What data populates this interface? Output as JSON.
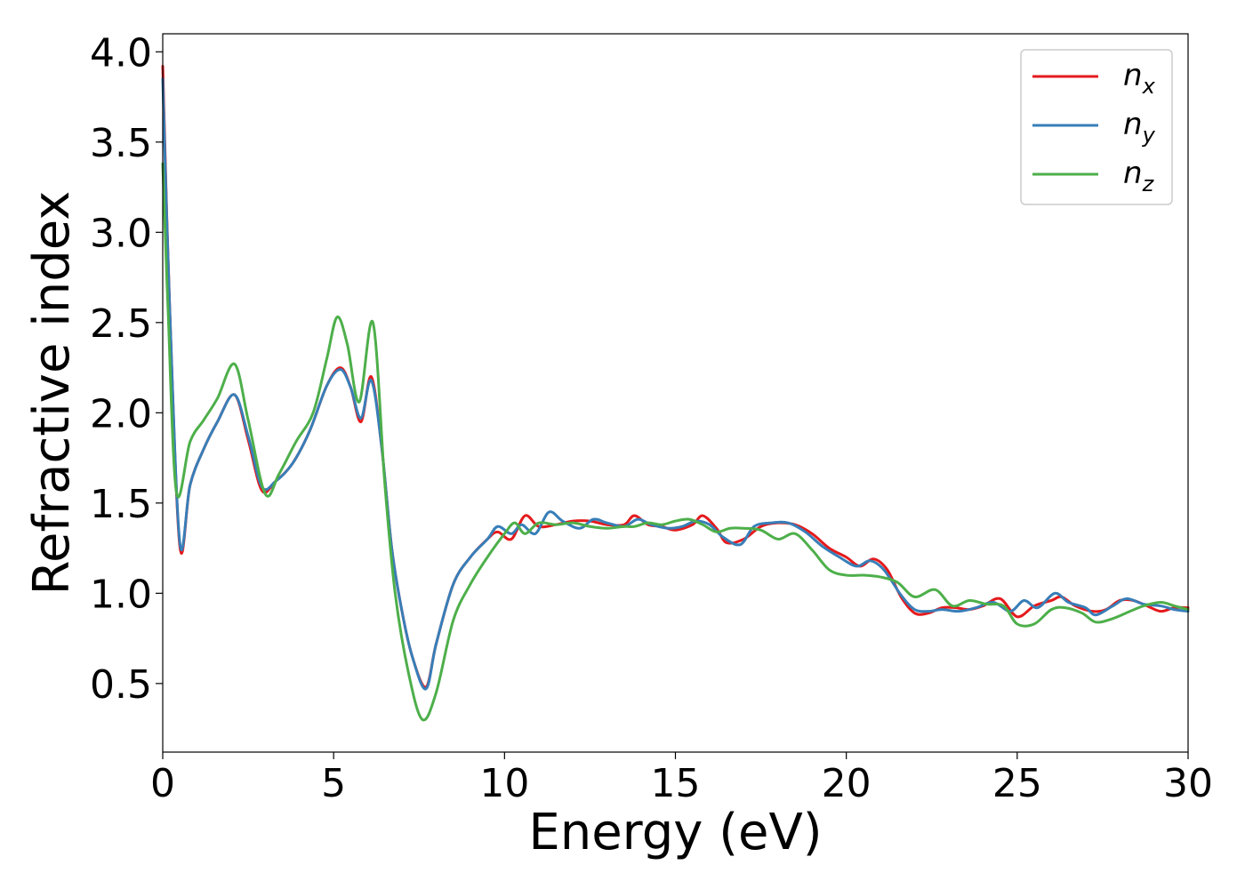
{
  "chart_data": {
    "type": "line",
    "title": "",
    "xlabel": "Energy (eV)",
    "ylabel": "Refractive index",
    "xlim": [
      0,
      30
    ],
    "ylim": [
      0.12,
      4.1
    ],
    "xticks": [
      0,
      5,
      10,
      15,
      20,
      25,
      30
    ],
    "xtick_labels": [
      "0",
      "5",
      "10",
      "15",
      "20",
      "25",
      "30"
    ],
    "yticks": [
      0.5,
      1.0,
      1.5,
      2.0,
      2.5,
      3.0,
      3.5,
      4.0
    ],
    "ytick_labels": [
      "0.5",
      "1.0",
      "1.5",
      "2.0",
      "2.5",
      "3.0",
      "3.5",
      "4.0"
    ],
    "grid": false,
    "legend_position": "top-right",
    "series": [
      {
        "name": "n_x",
        "label_base": "n",
        "label_sub": "x",
        "color": "#e41a1c",
        "points": [
          [
            0,
            3.92
          ],
          [
            0.2,
            2.6
          ],
          [
            0.5,
            1.26
          ],
          [
            0.8,
            1.6
          ],
          [
            1.2,
            1.8
          ],
          [
            1.6,
            1.95
          ],
          [
            2.1,
            2.1
          ],
          [
            2.5,
            1.85
          ],
          [
            2.9,
            1.57
          ],
          [
            3.3,
            1.62
          ],
          [
            3.8,
            1.72
          ],
          [
            4.3,
            1.9
          ],
          [
            4.8,
            2.15
          ],
          [
            5.2,
            2.25
          ],
          [
            5.5,
            2.14
          ],
          [
            5.8,
            1.95
          ],
          [
            6.1,
            2.2
          ],
          [
            6.4,
            1.82
          ],
          [
            6.7,
            1.25
          ],
          [
            7.0,
            0.9
          ],
          [
            7.3,
            0.65
          ],
          [
            7.7,
            0.48
          ],
          [
            8.0,
            0.72
          ],
          [
            8.5,
            1.05
          ],
          [
            9.0,
            1.2
          ],
          [
            9.5,
            1.3
          ],
          [
            9.8,
            1.34
          ],
          [
            10.2,
            1.3
          ],
          [
            10.6,
            1.43
          ],
          [
            11.0,
            1.37
          ],
          [
            11.5,
            1.38
          ],
          [
            12.0,
            1.4
          ],
          [
            12.5,
            1.4
          ],
          [
            13.0,
            1.38
          ],
          [
            13.5,
            1.38
          ],
          [
            13.8,
            1.43
          ],
          [
            14.2,
            1.38
          ],
          [
            14.6,
            1.37
          ],
          [
            15.0,
            1.35
          ],
          [
            15.5,
            1.38
          ],
          [
            15.8,
            1.43
          ],
          [
            16.2,
            1.36
          ],
          [
            16.5,
            1.28
          ],
          [
            17.0,
            1.3
          ],
          [
            17.5,
            1.37
          ],
          [
            18.0,
            1.39
          ],
          [
            18.5,
            1.38
          ],
          [
            19.0,
            1.33
          ],
          [
            19.5,
            1.25
          ],
          [
            20.0,
            1.2
          ],
          [
            20.4,
            1.15
          ],
          [
            20.8,
            1.19
          ],
          [
            21.2,
            1.13
          ],
          [
            21.6,
            0.98
          ],
          [
            22.0,
            0.89
          ],
          [
            22.4,
            0.89
          ],
          [
            22.8,
            0.92
          ],
          [
            23.2,
            0.92
          ],
          [
            23.6,
            0.91
          ],
          [
            24.0,
            0.93
          ],
          [
            24.5,
            0.97
          ],
          [
            25.0,
            0.87
          ],
          [
            25.5,
            0.93
          ],
          [
            26.0,
            0.96
          ],
          [
            26.3,
            0.98
          ],
          [
            26.7,
            0.93
          ],
          [
            27.2,
            0.9
          ],
          [
            27.6,
            0.91
          ],
          [
            28.0,
            0.96
          ],
          [
            28.4,
            0.96
          ],
          [
            28.8,
            0.93
          ],
          [
            29.2,
            0.9
          ],
          [
            29.6,
            0.92
          ],
          [
            30.0,
            0.92
          ]
        ]
      },
      {
        "name": "n_y",
        "label_base": "n",
        "label_sub": "y",
        "color": "#377eb8",
        "points": [
          [
            0,
            3.85
          ],
          [
            0.2,
            2.6
          ],
          [
            0.5,
            1.28
          ],
          [
            0.8,
            1.6
          ],
          [
            1.2,
            1.8
          ],
          [
            1.6,
            1.95
          ],
          [
            2.1,
            2.1
          ],
          [
            2.5,
            1.87
          ],
          [
            2.9,
            1.59
          ],
          [
            3.3,
            1.62
          ],
          [
            3.8,
            1.72
          ],
          [
            4.3,
            1.9
          ],
          [
            4.8,
            2.15
          ],
          [
            5.2,
            2.24
          ],
          [
            5.5,
            2.14
          ],
          [
            5.8,
            1.97
          ],
          [
            6.1,
            2.18
          ],
          [
            6.4,
            1.82
          ],
          [
            6.7,
            1.25
          ],
          [
            7.0,
            0.9
          ],
          [
            7.3,
            0.65
          ],
          [
            7.7,
            0.47
          ],
          [
            8.0,
            0.72
          ],
          [
            8.5,
            1.05
          ],
          [
            9.0,
            1.2
          ],
          [
            9.5,
            1.3
          ],
          [
            9.8,
            1.37
          ],
          [
            10.2,
            1.33
          ],
          [
            10.5,
            1.38
          ],
          [
            10.9,
            1.33
          ],
          [
            11.3,
            1.45
          ],
          [
            11.7,
            1.4
          ],
          [
            12.2,
            1.36
          ],
          [
            12.6,
            1.41
          ],
          [
            13.0,
            1.39
          ],
          [
            13.5,
            1.37
          ],
          [
            13.9,
            1.41
          ],
          [
            14.3,
            1.38
          ],
          [
            14.8,
            1.36
          ],
          [
            15.2,
            1.37
          ],
          [
            15.6,
            1.4
          ],
          [
            16.0,
            1.38
          ],
          [
            16.4,
            1.31
          ],
          [
            16.9,
            1.27
          ],
          [
            17.3,
            1.37
          ],
          [
            17.8,
            1.39
          ],
          [
            18.3,
            1.39
          ],
          [
            18.8,
            1.34
          ],
          [
            19.3,
            1.26
          ],
          [
            19.8,
            1.2
          ],
          [
            20.3,
            1.15
          ],
          [
            20.7,
            1.18
          ],
          [
            21.1,
            1.13
          ],
          [
            21.6,
            0.99
          ],
          [
            22.0,
            0.91
          ],
          [
            22.4,
            0.9
          ],
          [
            22.8,
            0.91
          ],
          [
            23.3,
            0.9
          ],
          [
            23.8,
            0.92
          ],
          [
            24.3,
            0.95
          ],
          [
            24.8,
            0.9
          ],
          [
            25.2,
            0.96
          ],
          [
            25.6,
            0.92
          ],
          [
            26.1,
            1.0
          ],
          [
            26.5,
            0.95
          ],
          [
            27.0,
            0.92
          ],
          [
            27.3,
            0.88
          ],
          [
            27.8,
            0.93
          ],
          [
            28.2,
            0.97
          ],
          [
            28.7,
            0.94
          ],
          [
            29.2,
            0.93
          ],
          [
            29.6,
            0.91
          ],
          [
            30.0,
            0.9
          ]
        ]
      },
      {
        "name": "n_z",
        "label_base": "n",
        "label_sub": "z",
        "color": "#4daf4a",
        "points": [
          [
            0,
            3.38
          ],
          [
            0.15,
            2.6
          ],
          [
            0.4,
            1.56
          ],
          [
            0.8,
            1.84
          ],
          [
            1.2,
            1.96
          ],
          [
            1.6,
            2.08
          ],
          [
            2.1,
            2.27
          ],
          [
            2.5,
            1.96
          ],
          [
            3.0,
            1.55
          ],
          [
            3.4,
            1.66
          ],
          [
            3.9,
            1.84
          ],
          [
            4.4,
            2.0
          ],
          [
            4.8,
            2.3
          ],
          [
            5.1,
            2.53
          ],
          [
            5.4,
            2.38
          ],
          [
            5.75,
            2.06
          ],
          [
            6.15,
            2.5
          ],
          [
            6.5,
            1.6
          ],
          [
            6.8,
            1.0
          ],
          [
            7.2,
            0.55
          ],
          [
            7.6,
            0.3
          ],
          [
            8.0,
            0.45
          ],
          [
            8.5,
            0.85
          ],
          [
            9.0,
            1.05
          ],
          [
            9.5,
            1.2
          ],
          [
            10.0,
            1.33
          ],
          [
            10.3,
            1.39
          ],
          [
            10.6,
            1.33
          ],
          [
            11.0,
            1.39
          ],
          [
            11.5,
            1.38
          ],
          [
            12.0,
            1.39
          ],
          [
            12.5,
            1.37
          ],
          [
            13.0,
            1.36
          ],
          [
            13.5,
            1.37
          ],
          [
            13.8,
            1.37
          ],
          [
            14.2,
            1.39
          ],
          [
            14.6,
            1.38
          ],
          [
            15.0,
            1.4
          ],
          [
            15.4,
            1.41
          ],
          [
            15.8,
            1.38
          ],
          [
            16.2,
            1.34
          ],
          [
            16.6,
            1.36
          ],
          [
            17.0,
            1.36
          ],
          [
            17.5,
            1.35
          ],
          [
            18.0,
            1.3
          ],
          [
            18.5,
            1.33
          ],
          [
            19.0,
            1.24
          ],
          [
            19.5,
            1.13
          ],
          [
            20.0,
            1.1
          ],
          [
            20.5,
            1.1
          ],
          [
            21.0,
            1.09
          ],
          [
            21.5,
            1.06
          ],
          [
            22.0,
            0.98
          ],
          [
            22.6,
            1.02
          ],
          [
            23.1,
            0.93
          ],
          [
            23.6,
            0.96
          ],
          [
            24.1,
            0.94
          ],
          [
            24.6,
            0.93
          ],
          [
            25.0,
            0.83
          ],
          [
            25.5,
            0.83
          ],
          [
            26.0,
            0.91
          ],
          [
            26.4,
            0.92
          ],
          [
            26.9,
            0.89
          ],
          [
            27.3,
            0.84
          ],
          [
            27.8,
            0.86
          ],
          [
            28.3,
            0.9
          ],
          [
            28.7,
            0.93
          ],
          [
            29.2,
            0.95
          ],
          [
            29.6,
            0.93
          ],
          [
            30.0,
            0.91
          ]
        ]
      }
    ]
  }
}
